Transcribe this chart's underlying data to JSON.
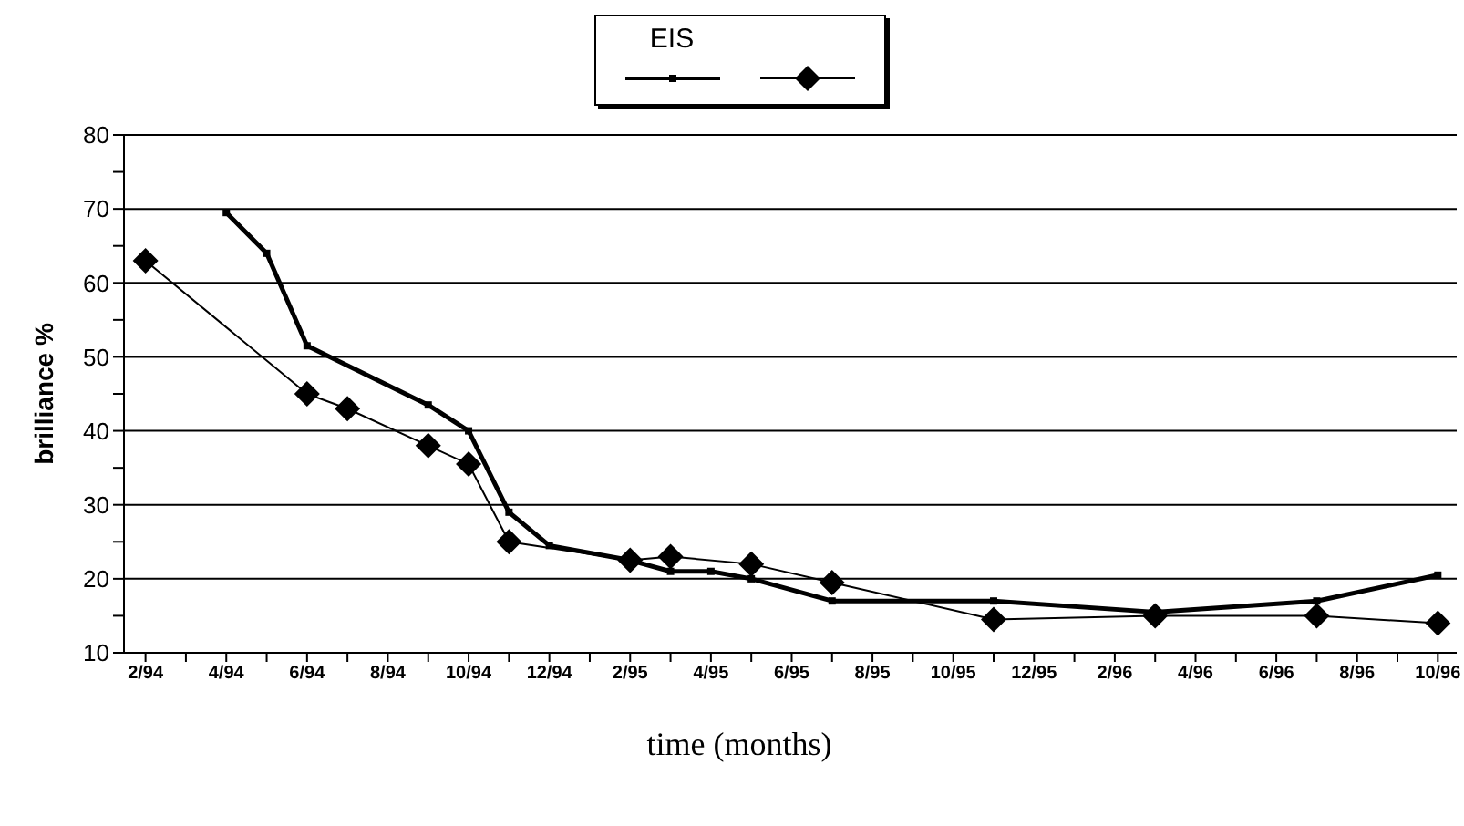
{
  "chart_data": {
    "type": "line",
    "xlabel": "time (months)",
    "ylabel": "brilliance %",
    "xlim": [
      "1994-01-15",
      "1996-10-15"
    ],
    "xticks": [
      {
        "value": "1994-02",
        "label": "2/94"
      },
      {
        "value": "1994-03",
        "label": null
      },
      {
        "value": "1994-04",
        "label": "4/94"
      },
      {
        "value": "1994-05",
        "label": null
      },
      {
        "value": "1994-06",
        "label": "6/94"
      },
      {
        "value": "1994-07",
        "label": null
      },
      {
        "value": "1994-08",
        "label": "8/94"
      },
      {
        "value": "1994-09",
        "label": null
      },
      {
        "value": "1994-10",
        "label": "10/94"
      },
      {
        "value": "1994-11",
        "label": null
      },
      {
        "value": "1994-12",
        "label": "12/94"
      },
      {
        "value": "1995-01",
        "label": null
      },
      {
        "value": "1995-02",
        "label": "2/95"
      },
      {
        "value": "1995-03",
        "label": null
      },
      {
        "value": "1995-04",
        "label": "4/95"
      },
      {
        "value": "1995-05",
        "label": null
      },
      {
        "value": "1995-06",
        "label": "6/95"
      },
      {
        "value": "1995-07",
        "label": null
      },
      {
        "value": "1995-08",
        "label": "8/95"
      },
      {
        "value": "1995-09",
        "label": null
      },
      {
        "value": "1995-10",
        "label": "10/95"
      },
      {
        "value": "1995-11",
        "label": null
      },
      {
        "value": "1995-12",
        "label": "12/95"
      },
      {
        "value": "1996-01",
        "label": null
      },
      {
        "value": "1996-02",
        "label": "2/96"
      },
      {
        "value": "1996-03",
        "label": null
      },
      {
        "value": "1996-04",
        "label": "4/96"
      },
      {
        "value": "1996-05",
        "label": null
      },
      {
        "value": "1996-06",
        "label": "6/96"
      },
      {
        "value": "1996-07",
        "label": null
      },
      {
        "value": "1996-08",
        "label": "8/96"
      },
      {
        "value": "1996-09",
        "label": null
      },
      {
        "value": "1996-10",
        "label": "10/96"
      }
    ],
    "ylim": [
      10,
      80
    ],
    "yticks": [
      10,
      {
        "value": 15,
        "label": null
      },
      20,
      {
        "value": 25,
        "label": null
      },
      30,
      {
        "value": 35,
        "label": null
      },
      40,
      {
        "value": 45,
        "label": null
      },
      50,
      {
        "value": 55,
        "label": null
      },
      60,
      {
        "value": 65,
        "label": null
      },
      70,
      {
        "value": 75,
        "label": null
      },
      80
    ],
    "grid": "y",
    "legend": "top",
    "series": [
      {
        "name": "EIS",
        "color": "#000000",
        "marker": "square",
        "x": [
          "1994-04",
          "1994-05",
          "1994-06",
          "1994-09",
          "1994-10",
          "1994-11",
          "1994-12",
          "1995-02",
          "1995-03",
          "1995-04",
          "1995-05",
          "1995-07",
          "1995-11",
          "1996-03",
          "1996-07",
          "1996-10"
        ],
        "values": [
          69.5,
          64,
          51.5,
          43.5,
          40,
          29,
          24.5,
          22.5,
          21,
          21,
          20,
          17,
          17,
          15.5,
          17,
          20.5
        ]
      },
      {
        "color": "#000000",
        "marker": "diamond",
        "x": [
          "1994-02",
          "1994-06",
          "1994-07",
          "1994-09",
          "1994-10",
          "1994-11",
          "1995-02",
          "1995-03",
          "1995-05",
          "1995-07",
          "1995-11",
          "1996-03",
          "1996-07",
          "1996-10"
        ],
        "values": [
          63,
          45,
          43,
          38,
          35.5,
          25,
          22.5,
          23,
          22,
          19.5,
          14.5,
          15,
          15,
          14
        ]
      }
    ]
  }
}
